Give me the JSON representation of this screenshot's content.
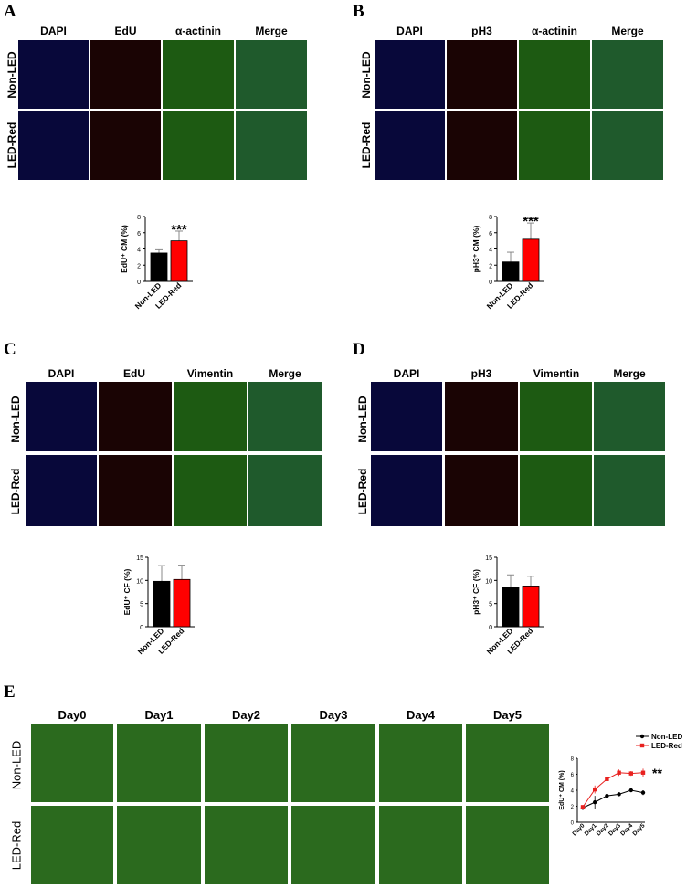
{
  "panels": {
    "A": {
      "letter": "A",
      "columns": [
        "DAPI",
        "EdU",
        "α-actinin",
        "Merge"
      ],
      "rows": [
        "Non-LED",
        "LED-Red"
      ],
      "chart_data": {
        "type": "bar",
        "categories": [
          "Non-LED",
          "LED-Red"
        ],
        "values": [
          3.5,
          5.0
        ],
        "errors": [
          0.4,
          1.2
        ],
        "colors": [
          "#000000",
          "#ff0000"
        ],
        "ylabel": "EdU⁺ CM (%)",
        "ylim": [
          0,
          8
        ],
        "yticks": [
          "0",
          "2",
          "4",
          "6",
          "8"
        ],
        "significance": "***"
      }
    },
    "B": {
      "letter": "B",
      "columns": [
        "DAPI",
        "pH3",
        "α-actinin",
        "Merge"
      ],
      "rows": [
        "Non-LED",
        "LED-Red"
      ],
      "chart_data": {
        "type": "bar",
        "categories": [
          "Non-LED",
          "LED-Red"
        ],
        "values": [
          2.4,
          5.2
        ],
        "errors": [
          1.2,
          2.0
        ],
        "colors": [
          "#000000",
          "#ff0000"
        ],
        "ylabel": "pH3⁺ CM (%)",
        "ylim": [
          0,
          8
        ],
        "yticks": [
          "0",
          "2",
          "4",
          "6",
          "8"
        ],
        "significance": "***"
      }
    },
    "C": {
      "letter": "C",
      "columns": [
        "DAPI",
        "EdU",
        "Vimentin",
        "Merge"
      ],
      "rows": [
        "Non-LED",
        "LED-Red"
      ],
      "chart_data": {
        "type": "bar",
        "categories": [
          "Non-LED",
          "LED-Red"
        ],
        "values": [
          9.8,
          10.2
        ],
        "errors": [
          3.4,
          3.1
        ],
        "colors": [
          "#000000",
          "#ff0000"
        ],
        "ylabel": "EdU⁺ CF (%)",
        "ylim": [
          0,
          15
        ],
        "yticks": [
          "0",
          "5",
          "10",
          "15"
        ],
        "significance": ""
      }
    },
    "D": {
      "letter": "D",
      "columns": [
        "DAPI",
        "pH3",
        "Vimentin",
        "Merge"
      ],
      "rows": [
        "Non-LED",
        "LED-Red"
      ],
      "chart_data": {
        "type": "bar",
        "categories": [
          "Non-LED",
          "LED-Red"
        ],
        "values": [
          8.5,
          8.8
        ],
        "errors": [
          2.7,
          2.1
        ],
        "colors": [
          "#000000",
          "#ff0000"
        ],
        "ylabel": "pH3⁺ CF (%)",
        "ylim": [
          0,
          15
        ],
        "yticks": [
          "0",
          "5",
          "10",
          "15"
        ],
        "significance": ""
      }
    },
    "E": {
      "letter": "E",
      "columns": [
        "Day0",
        "Day1",
        "Day2",
        "Day3",
        "Day4",
        "Day5"
      ],
      "rows": [
        "Non-LED",
        "LED-Red"
      ],
      "chart_data": {
        "type": "line",
        "x": [
          "Day0",
          "Day1",
          "Day2",
          "Day3",
          "Day4",
          "Day5"
        ],
        "ylabel": "EdU⁺ CM (%)",
        "ylim": [
          0,
          8
        ],
        "yticks": [
          "0",
          "2",
          "4",
          "6",
          "8"
        ],
        "series": [
          {
            "name": "Non-LED",
            "values": [
              1.8,
              2.5,
              3.3,
              3.5,
              4.0,
              3.7
            ],
            "errors": [
              0.2,
              0.8,
              0.4,
              0.2,
              0.2,
              0.3
            ],
            "color": "#000000",
            "marker": "circle"
          },
          {
            "name": "LED-Red",
            "values": [
              1.9,
              4.1,
              5.4,
              6.2,
              6.1,
              6.2
            ],
            "errors": [
              0.2,
              0.5,
              0.5,
              0.4,
              0.3,
              0.5
            ],
            "color": "#e8211f",
            "marker": "square"
          }
        ],
        "significance": "**"
      }
    }
  }
}
